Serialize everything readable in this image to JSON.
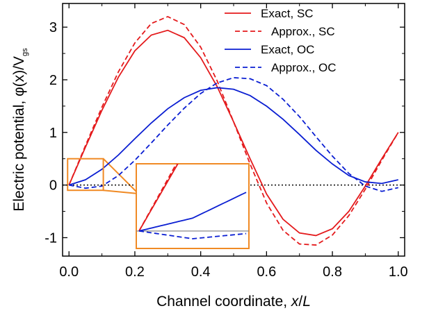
{
  "chart_data": {
    "type": "line",
    "title": "",
    "xlabel": {
      "prefix": "Channel coordinate, ",
      "var": "x",
      "slash": "/",
      "var2": "L"
    },
    "ylabel": {
      "prefix": "Electric potential, φ(x)/V",
      "sub": "gs"
    },
    "xlim": [
      0,
      1
    ],
    "ylim": [
      -1.35,
      3.45
    ],
    "x_ticks": [
      0.0,
      0.2,
      0.4,
      0.6,
      0.8,
      1.0
    ],
    "x_tick_labels": [
      "0.0",
      "0.2",
      "0.4",
      "0.6",
      "0.8",
      "1.0"
    ],
    "y_ticks": [
      -1,
      0,
      1,
      2,
      3
    ],
    "y_tick_labels": [
      "-1",
      "0",
      "1",
      "2",
      "3"
    ],
    "legend_position": "top-right",
    "colors": {
      "sc": "#e41a1c",
      "oc": "#0a1ed2",
      "inset": "#f08a24",
      "zero": "#000000"
    },
    "series": [
      {
        "name": "Exact, SC",
        "color": "#e41a1c",
        "dash": "solid",
        "x": [
          0,
          0.05,
          0.1,
          0.15,
          0.2,
          0.25,
          0.3,
          0.35,
          0.4,
          0.45,
          0.5,
          0.55,
          0.6,
          0.65,
          0.7,
          0.75,
          0.8,
          0.85,
          0.9,
          0.95,
          1.0
        ],
        "y": [
          0,
          0.72,
          1.42,
          2.05,
          2.55,
          2.85,
          2.94,
          2.8,
          2.42,
          1.87,
          1.2,
          0.5,
          -0.17,
          -0.65,
          -0.91,
          -0.96,
          -0.83,
          -0.5,
          -0.02,
          0.5,
          1.0
        ]
      },
      {
        "name": "Approx., SC",
        "color": "#e41a1c",
        "dash": "dashed",
        "x": [
          0,
          0.05,
          0.1,
          0.15,
          0.2,
          0.25,
          0.3,
          0.35,
          0.4,
          0.45,
          0.5,
          0.55,
          0.6,
          0.65,
          0.7,
          0.75,
          0.8,
          0.85,
          0.9,
          0.95,
          1.0
        ],
        "y": [
          0,
          0.75,
          1.48,
          2.15,
          2.7,
          3.07,
          3.2,
          3.05,
          2.62,
          1.98,
          1.2,
          0.4,
          -0.34,
          -0.86,
          -1.12,
          -1.14,
          -0.95,
          -0.58,
          -0.08,
          0.47,
          1.0
        ]
      },
      {
        "name": "Exact, OC",
        "color": "#0a1ed2",
        "dash": "solid",
        "x": [
          0,
          0.05,
          0.1,
          0.15,
          0.2,
          0.25,
          0.3,
          0.35,
          0.4,
          0.45,
          0.5,
          0.55,
          0.6,
          0.65,
          0.7,
          0.75,
          0.8,
          0.85,
          0.9,
          0.95,
          1.0
        ],
        "y": [
          0,
          0.1,
          0.3,
          0.57,
          0.88,
          1.18,
          1.45,
          1.66,
          1.8,
          1.85,
          1.82,
          1.7,
          1.5,
          1.25,
          0.96,
          0.66,
          0.4,
          0.18,
          0.06,
          0.03,
          0.1
        ]
      },
      {
        "name": "Approx., OC",
        "color": "#0a1ed2",
        "dash": "dashed",
        "x": [
          0,
          0.05,
          0.1,
          0.15,
          0.2,
          0.25,
          0.3,
          0.35,
          0.4,
          0.45,
          0.5,
          0.55,
          0.6,
          0.65,
          0.7,
          0.75,
          0.8,
          0.85,
          0.9,
          0.95,
          1.0
        ],
        "y": [
          0,
          -0.06,
          -0.02,
          0.18,
          0.47,
          0.8,
          1.14,
          1.46,
          1.74,
          1.94,
          2.04,
          2.02,
          1.89,
          1.63,
          1.3,
          0.92,
          0.55,
          0.22,
          -0.02,
          -0.12,
          -0.05
        ]
      }
    ],
    "inset": {
      "zoom_region": {
        "x": [
          0,
          0.1
        ],
        "y": [
          -0.1,
          0.5
        ]
      },
      "note": ""
    }
  }
}
